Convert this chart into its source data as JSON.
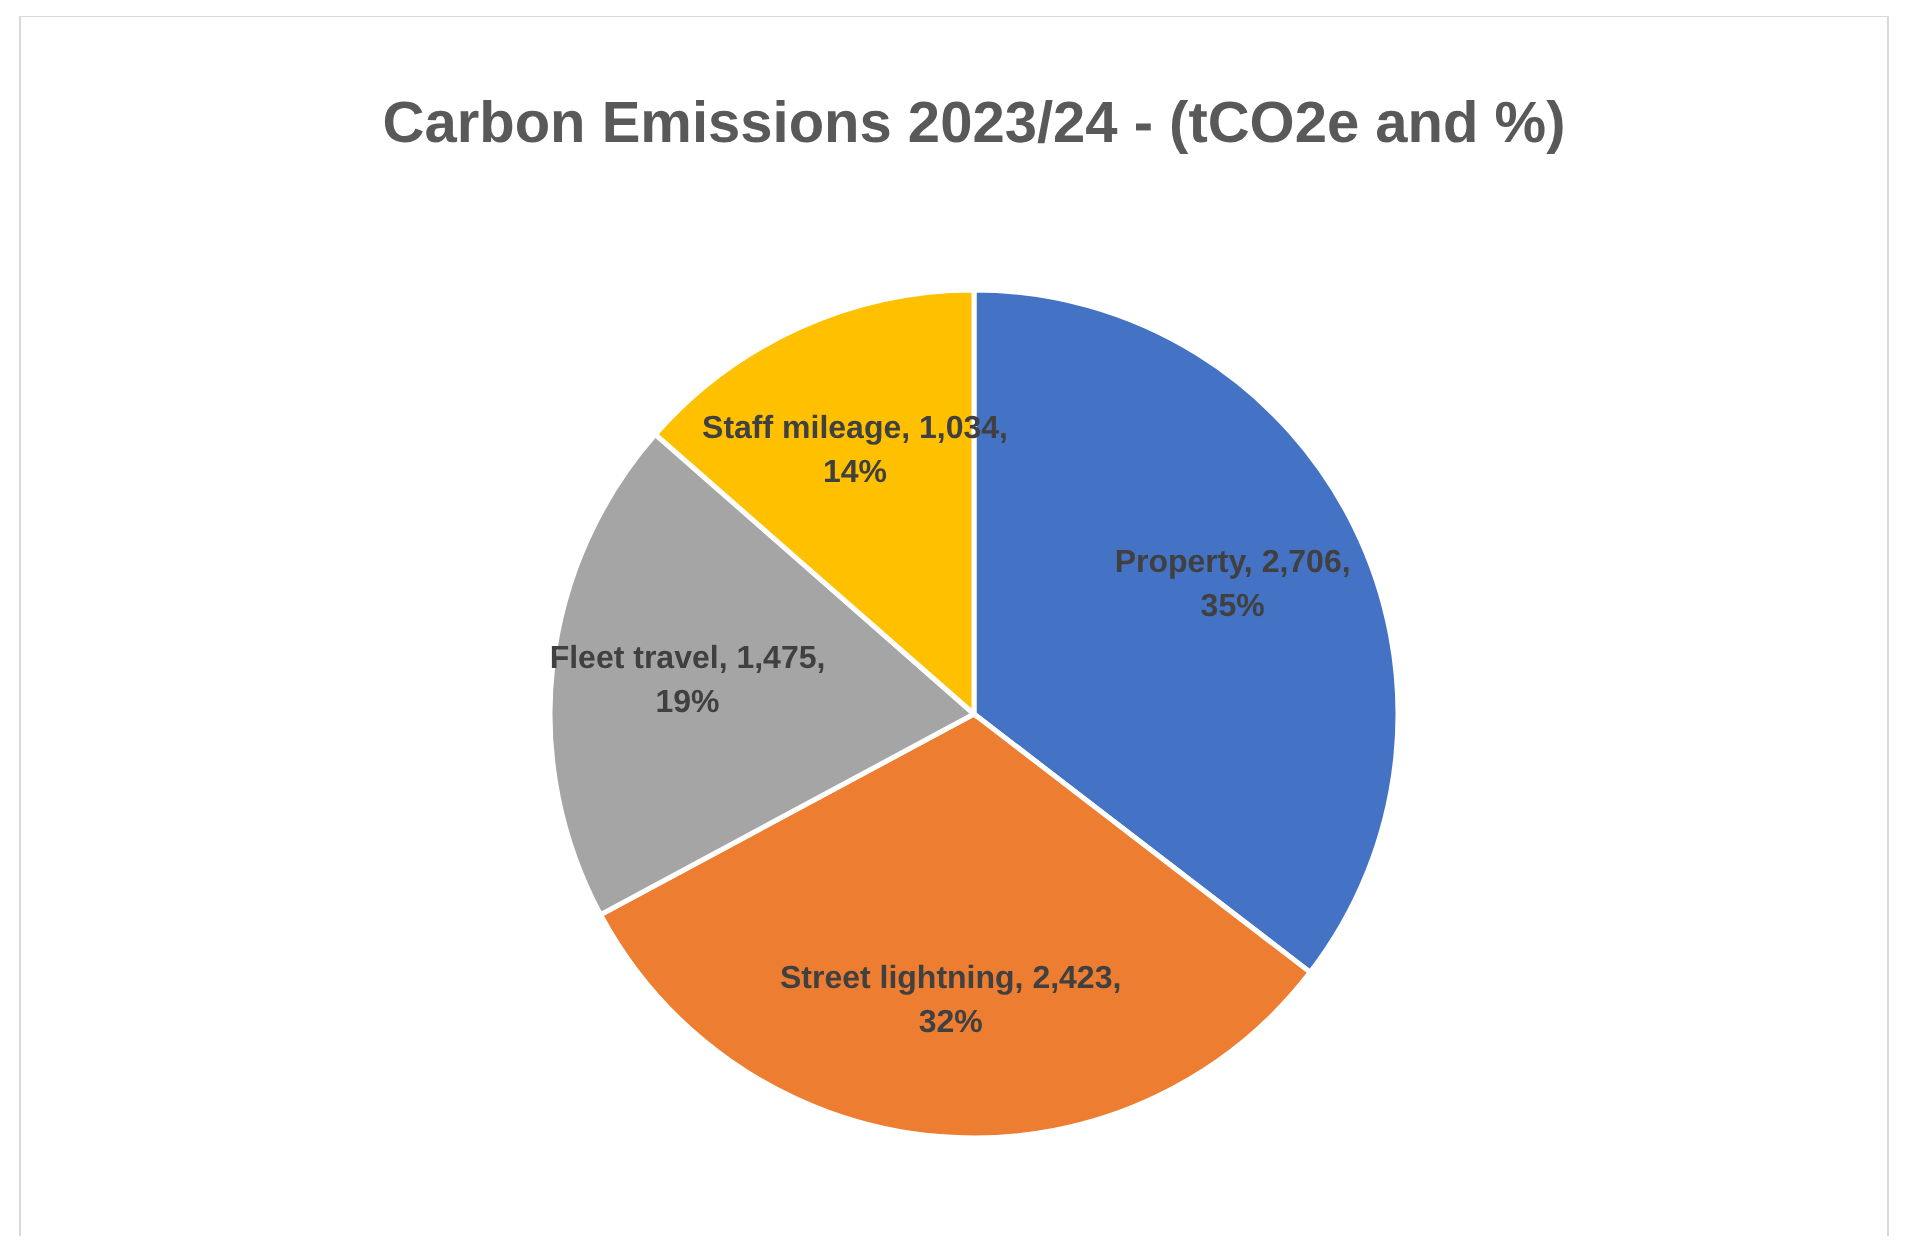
{
  "chart_data": {
    "type": "pie",
    "title": "Carbon Emissions 2023/24 - (tCO2e and %)",
    "categories": [
      "Property",
      "Street lightning",
      "Fleet travel",
      "Staff mileage"
    ],
    "values": [
      2706,
      2423,
      1475,
      1034
    ],
    "colors": [
      "#4472c4",
      "#ed7d31",
      "#a5a5a5",
      "#ffc000"
    ],
    "value_labels": [
      "2,706, 35%",
      "2,423, 32%",
      "1,475, 19%",
      "1,034, 14%"
    ],
    "legend": false
  }
}
